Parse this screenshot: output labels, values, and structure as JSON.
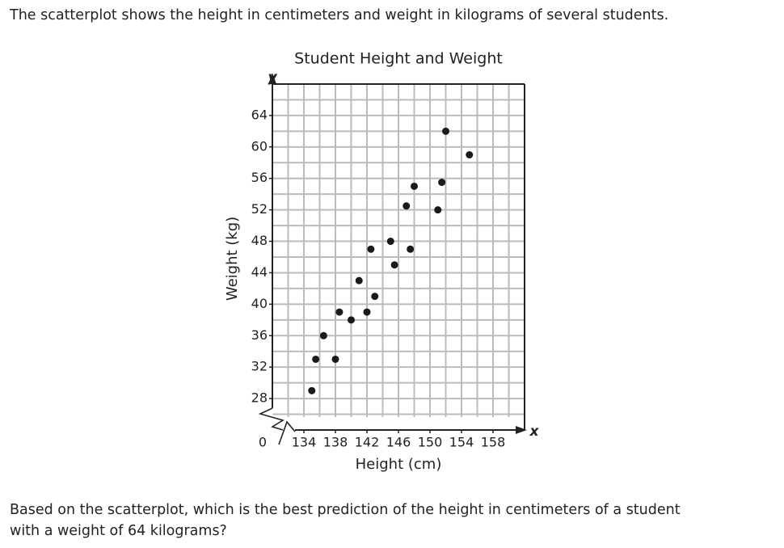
{
  "intro": "The scatterplot shows the height in centimeters and weight in kilograms of several students.",
  "chart_data": {
    "type": "scatter",
    "title": "Student Height and Weight",
    "x_label": "Height (cm)",
    "y_label": "Weight (kg)",
    "x_axis_letter": "x",
    "y_axis_letter": "y",
    "origin_label": 0,
    "x": [
      135,
      135.5,
      136.5,
      138,
      138.5,
      140,
      141,
      142,
      142.5,
      143,
      145,
      145.5,
      147,
      147.5,
      148,
      151,
      151.5,
      152,
      155
    ],
    "values": [
      29,
      33,
      36,
      33,
      39,
      38,
      43,
      39,
      47,
      41,
      48,
      45,
      52.5,
      47,
      55,
      52,
      55.5,
      62,
      59
    ],
    "color": "#1a1a1a",
    "xlim": [
      130,
      162
    ],
    "ylim": [
      24,
      68
    ],
    "xticks": [
      134,
      138,
      142,
      146,
      150,
      154,
      158
    ],
    "yticks": [
      28,
      32,
      36,
      40,
      44,
      48,
      52,
      56,
      60,
      64
    ],
    "xgrid": [
      132,
      134,
      136,
      138,
      140,
      142,
      144,
      146,
      148,
      150,
      152,
      154,
      156,
      158,
      160
    ],
    "ygrid": [
      26,
      28,
      30,
      32,
      34,
      36,
      38,
      40,
      42,
      44,
      46,
      48,
      50,
      52,
      54,
      56,
      58,
      60,
      62,
      64,
      66
    ],
    "grid": true
  },
  "question": [
    "Based on the scatterplot, which is the best prediction of the height in centimeters of a student",
    "with a weight of 64 kilograms?"
  ]
}
